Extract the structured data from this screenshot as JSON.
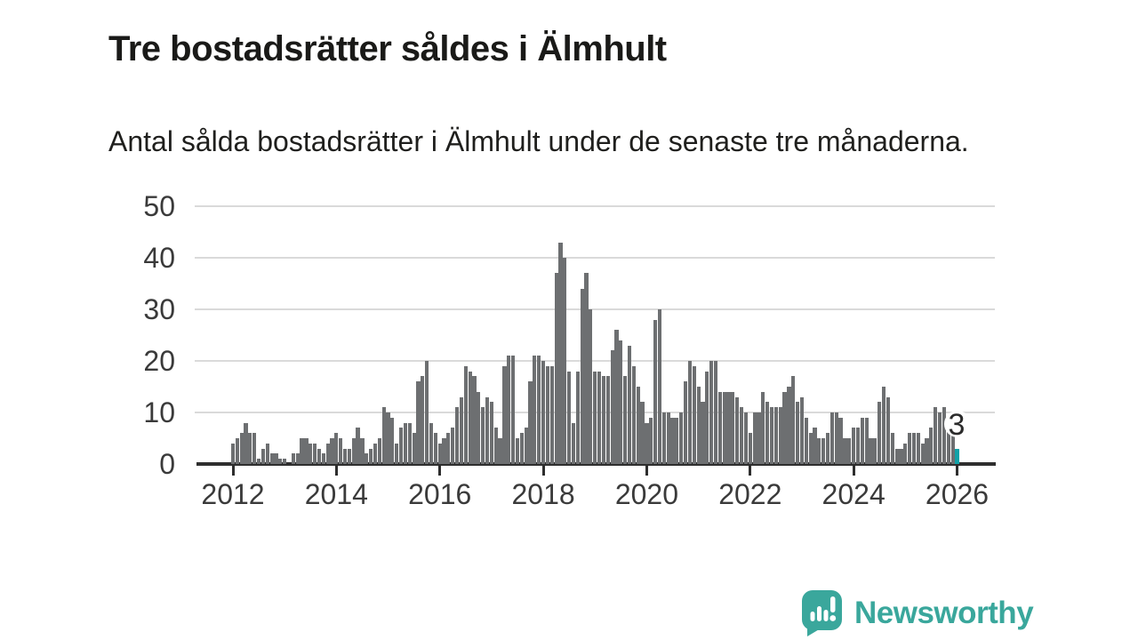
{
  "title": "Tre bostadsrätter såldes i Älmhult",
  "subtitle": "Antal sålda bostadsrätter i Älmhult under de senaste tre månaderna.",
  "branding": {
    "name": "Newsworthy",
    "icon": "newsworthy-speech-bubble-bar-chart-icon",
    "color": "#3aa79c"
  },
  "colors": {
    "bar": "#6d6f71",
    "highlight": "#12a2a8",
    "gridline": "#dadada",
    "axis": "#2e2e2e",
    "text": "#1a1a18"
  },
  "chart_data": {
    "type": "bar",
    "title": "Tre bostadsrätter såldes i Älmhult",
    "subtitle": "Antal sålda bostadsrätter i Älmhult under de senaste tre månaderna.",
    "x_unit": "månad",
    "x_range": [
      "2012-01",
      "2026-01"
    ],
    "x_tick_labels": [
      "2012",
      "2014",
      "2016",
      "2018",
      "2020",
      "2022",
      "2024",
      "2026"
    ],
    "y_ticks": [
      0,
      10,
      20,
      30,
      40,
      50
    ],
    "ylim": [
      0,
      50
    ],
    "grid": "horizontal",
    "legend": "none",
    "highlight_label": "3",
    "highlight_month": "2026-01",
    "series": [
      {
        "name": "Antal sålda bostadsrätter per månad",
        "values_by_year": {
          "2012": [
            4,
            5,
            6,
            8,
            6,
            6,
            1,
            3,
            4,
            2,
            2,
            1
          ],
          "2013": [
            1,
            0,
            2,
            2,
            5,
            5,
            4,
            4,
            3,
            2,
            4,
            5
          ],
          "2014": [
            6,
            5,
            3,
            3,
            5,
            7,
            5,
            2,
            3,
            4,
            5,
            11
          ],
          "2015": [
            10,
            9,
            4,
            7,
            8,
            8,
            6,
            16,
            17,
            20,
            8,
            6
          ],
          "2016": [
            4,
            5,
            6,
            7,
            11,
            13,
            19,
            18,
            17,
            14,
            11,
            13
          ],
          "2017": [
            12,
            7,
            5,
            19,
            21,
            21,
            5,
            6,
            7,
            16,
            21,
            21
          ],
          "2018": [
            20,
            19,
            19,
            37,
            43,
            40,
            18,
            8,
            18,
            34,
            37,
            30
          ],
          "2019": [
            18,
            18,
            17,
            17,
            22,
            26,
            24,
            17,
            23,
            19,
            15,
            12
          ],
          "2020": [
            8,
            9,
            28,
            30,
            10,
            10,
            9,
            9,
            10,
            16,
            20,
            19
          ],
          "2021": [
            15,
            12,
            18,
            20,
            20,
            14,
            14,
            14,
            14,
            13,
            11,
            10
          ],
          "2022": [
            6,
            10,
            10,
            14,
            12,
            11,
            11,
            11,
            14,
            15,
            17,
            12
          ],
          "2023": [
            13,
            9,
            6,
            7,
            5,
            5,
            6,
            10,
            10,
            9,
            5,
            5
          ],
          "2024": [
            7,
            7,
            9,
            9,
            5,
            5,
            12,
            15,
            13,
            6,
            3,
            3
          ],
          "2025": [
            4,
            6,
            6,
            6,
            4,
            5,
            7,
            11,
            10,
            11,
            8,
            6
          ],
          "2026": [
            3
          ]
        }
      }
    ]
  }
}
